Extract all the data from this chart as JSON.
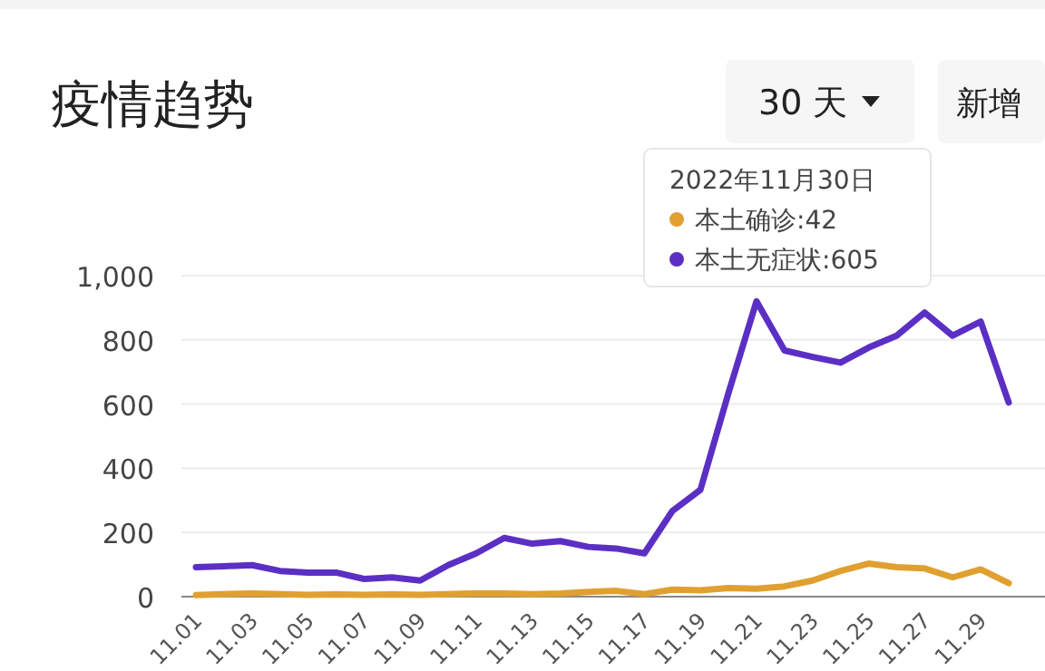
{
  "chart_data": {
    "type": "line",
    "title": "疫情趋势",
    "categories": [
      "11.01",
      null,
      "11.03",
      null,
      "11.05",
      null,
      "11.07",
      null,
      "11.09",
      null,
      "11.11",
      null,
      "11.13",
      null,
      "11.15",
      null,
      "11.17",
      null,
      "11.19",
      null,
      "11.21",
      null,
      "11.23",
      null,
      "11.25",
      null,
      "11.27",
      null,
      "11.29",
      null
    ],
    "series": [
      {
        "color": "#e0a030",
        "values": [
          5,
          8,
          10,
          8,
          6,
          7,
          6,
          7,
          6,
          8,
          10,
          10,
          8,
          10,
          15,
          18,
          8,
          22,
          20,
          27,
          25,
          32,
          50,
          80,
          103,
          92,
          88,
          60,
          85,
          42
        ]
      },
      {
        "color": "#5b2fc4",
        "values": [
          92,
          95,
          98,
          80,
          75,
          75,
          55,
          60,
          50,
          98,
          135,
          183,
          165,
          173,
          155,
          150,
          135,
          267,
          333,
          634,
          920,
          767,
          747,
          729,
          776,
          813,
          885,
          813,
          857,
          605
        ]
      }
    ],
    "ylim": [
      0,
      1000
    ],
    "yticks": [
      0,
      200,
      400,
      600,
      800,
      {
        "value": 1000,
        "label": "1,000"
      }
    ],
    "grid": "y",
    "marker": "none",
    "line_style": "solid",
    "annotations": [
      "30 天",
      "新增",
      "2022年11月30日",
      "本土确诊:42",
      "本土无症状:605"
    ]
  }
}
